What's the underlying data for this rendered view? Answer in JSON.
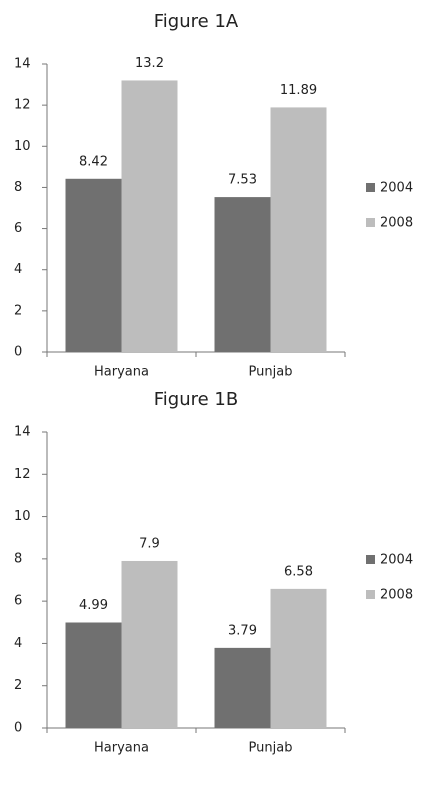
{
  "chart_data": [
    {
      "type": "bar",
      "title": "Figure 1A",
      "categories": [
        "Haryana",
        "Punjab"
      ],
      "series": [
        {
          "name": "2004",
          "color": "#707070",
          "values": [
            8.42,
            7.53
          ]
        },
        {
          "name": "2008",
          "color": "#bdbdbd",
          "values": [
            13.2,
            11.89
          ]
        }
      ],
      "ylim": [
        0,
        14
      ],
      "yticks": [
        0,
        2,
        4,
        6,
        8,
        10,
        12,
        14
      ],
      "legend": "right"
    },
    {
      "type": "bar",
      "title": "Figure 1B",
      "categories": [
        "Haryana",
        "Punjab"
      ],
      "series": [
        {
          "name": "2004",
          "color": "#707070",
          "values": [
            4.99,
            3.79
          ]
        },
        {
          "name": "2008",
          "color": "#bdbdbd",
          "values": [
            7.9,
            6.58
          ]
        }
      ],
      "ylim": [
        0,
        14
      ],
      "yticks": [
        0,
        2,
        4,
        6,
        8,
        10,
        12,
        14
      ],
      "legend": "right"
    }
  ]
}
